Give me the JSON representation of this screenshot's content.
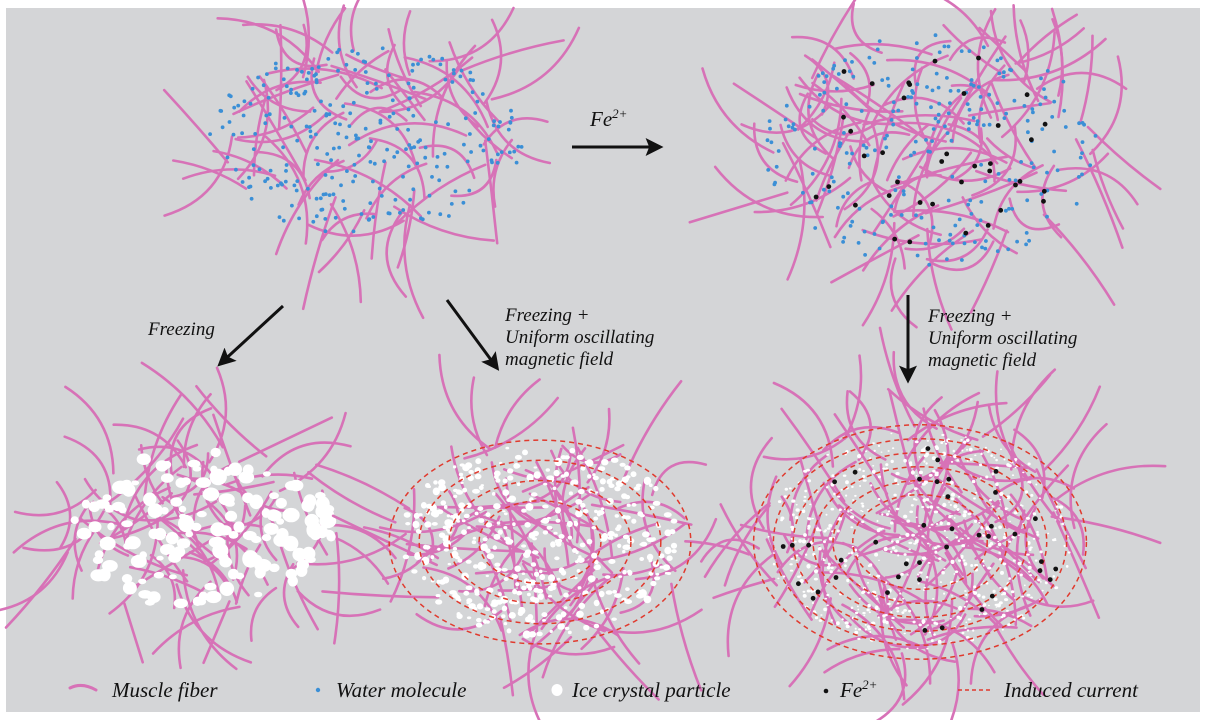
{
  "arrow_labels": {
    "fe_top": {
      "base": "Fe",
      "sup": "2+"
    },
    "freezing": "Freezing",
    "freezing_magnetic_mid": [
      "Freezing +",
      "Uniform oscillating",
      "magnetic field"
    ],
    "freezing_magnetic_right": [
      "Freezing +",
      "Uniform oscillating",
      "magnetic field"
    ]
  },
  "legend": {
    "muscle_fiber": "Muscle fiber",
    "water_molecule": "Water molecule",
    "ice_crystal": "Ice crystal particle",
    "fe_ion": {
      "base": "Fe",
      "sup": "2+"
    },
    "induced_current": "Induced current"
  },
  "colors": {
    "background": "#d4d5d7",
    "muscle_fiber": "#d772b7",
    "water_molecule": "#3b8fd6",
    "ice_crystal": "#ffffff",
    "fe_ion": "#111111",
    "induced_current": "#e03a2e",
    "arrow": "#111111"
  }
}
